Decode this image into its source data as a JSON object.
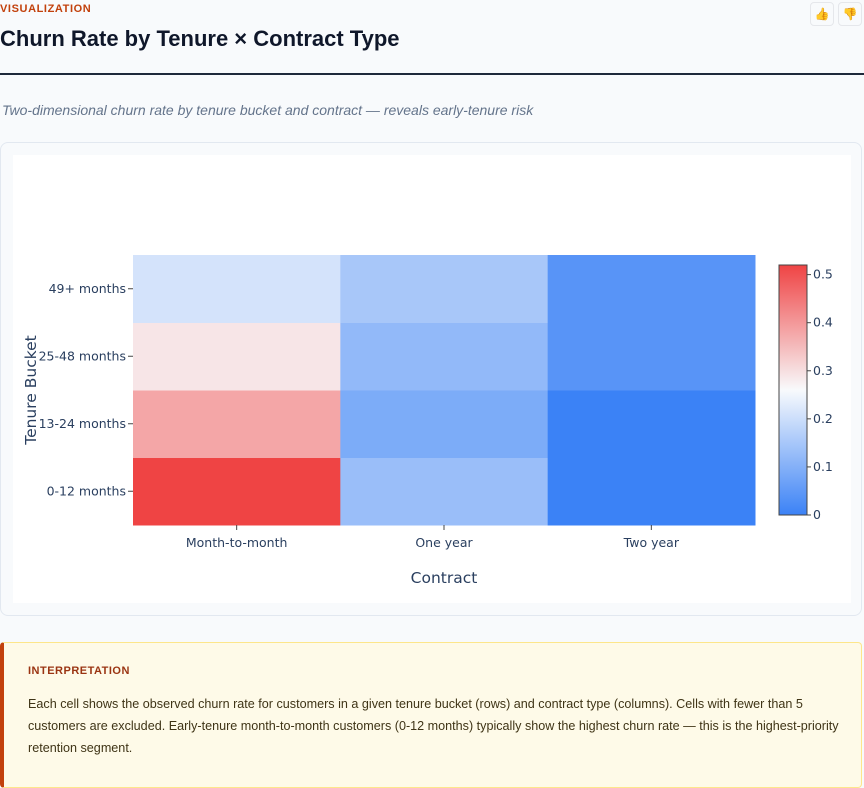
{
  "header": {
    "eyebrow": "VISUALIZATION",
    "title": "Churn Rate by Tenure × Contract Type",
    "thumbs_up_icon": "thumbs-up-icon",
    "thumbs_down_icon": "thumbs-down-icon"
  },
  "subtitle": "Two-dimensional churn rate by tenure bucket and contract — reveals early-tenure risk",
  "chart_data": {
    "type": "heatmap",
    "x": [
      "Month-to-month",
      "One year",
      "Two year"
    ],
    "y": [
      "0-12 months",
      "13-24 months",
      "25-48 months",
      "49+ months"
    ],
    "z": [
      [
        0.52,
        0.13,
        0.0
      ],
      [
        0.38,
        0.09,
        0.0
      ],
      [
        0.29,
        0.12,
        0.04
      ],
      [
        0.21,
        0.15,
        0.04
      ]
    ],
    "xlabel": "Contract",
    "ylabel": "Tenure Bucket",
    "colorscale": [
      "#3b82f6",
      "#f8fafc",
      "#ef4444"
    ],
    "zmin": 0,
    "zmax": 0.52,
    "colorbar_ticks": [
      0,
      0.1,
      0.2,
      0.3,
      0.4,
      0.5
    ]
  },
  "interpretation": {
    "label": "INTERPRETATION",
    "text": "Each cell shows the observed churn rate for customers in a given tenure bucket (rows) and contract type (columns). Cells with fewer than 5 customers are excluded. Early-tenure month-to-month customers (0-12 months) typically show the highest churn rate — this is the highest-priority retention segment."
  }
}
